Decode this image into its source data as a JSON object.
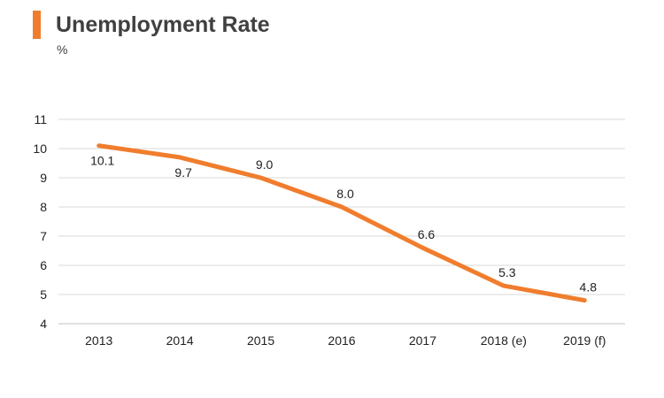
{
  "colors": {
    "accent": "#f07d2d",
    "grid": "#d9d9d9",
    "axis": "#bfbfbf"
  },
  "header": {
    "title": "Unemployment Rate",
    "unit": "%"
  },
  "chart_data": {
    "type": "line",
    "title": "Unemployment Rate",
    "ylabel": "%",
    "xlabel": "",
    "categories": [
      "2013",
      "2014",
      "2015",
      "2016",
      "2017",
      "2018 (e)",
      "2019 (f)"
    ],
    "series": [
      {
        "values": [
          10.1,
          9.7,
          9.0,
          8.0,
          6.6,
          5.3,
          4.8
        ],
        "labels": [
          "10.1",
          "9.7",
          "9.0",
          "8.0",
          "6.6",
          "5.3",
          "4.8"
        ]
      }
    ],
    "ylim": [
      4,
      11
    ],
    "yticks": [
      4,
      5,
      6,
      7,
      8,
      9,
      10,
      11
    ],
    "grid": true,
    "legend": "none"
  }
}
